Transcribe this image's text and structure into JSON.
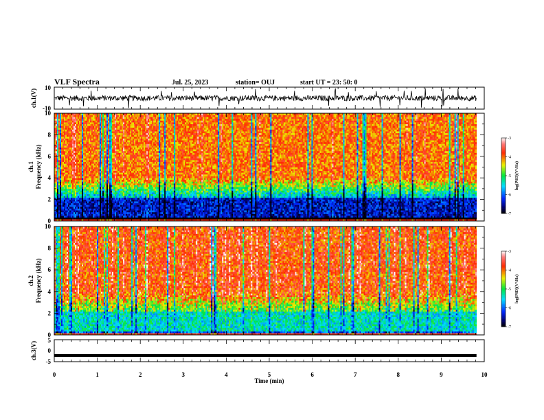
{
  "header": {
    "title": "VLF Spectra",
    "date": "Jul. 25, 2023",
    "station": "station= OUJ",
    "start": "start UT =  23: 50: 0"
  },
  "chart_data": [
    {
      "type": "line",
      "name": "ch1-waveform",
      "ylabel": "ch.1(V)",
      "ylim": [
        -10,
        10
      ],
      "yticks": [
        "10",
        "-10"
      ],
      "xlim": [
        0,
        10
      ],
      "x_extent": [
        0,
        9.82
      ],
      "baseline": 0,
      "typical_amplitude": 2.5,
      "peak_amplitude": 9
    },
    {
      "type": "heatmap",
      "name": "ch1-spectrogram",
      "ylabel": "ch.1 Frequency (kHz)",
      "ylabel_line1": "ch.1",
      "ylabel_line2": "Frequency (kHz)",
      "ylim": [
        0,
        10
      ],
      "yticks": [
        "0",
        "2",
        "4",
        "6",
        "8",
        "10"
      ],
      "xlim": [
        0,
        10
      ],
      "x_extent": [
        0,
        9.82
      ],
      "low_band_khz": [
        0.3,
        2.2
      ],
      "dominant_level": -4.0,
      "low_band_level": -6.4
    },
    {
      "type": "heatmap",
      "name": "ch2-spectrogram",
      "ylabel": "ch.2 Frequency (kHz)",
      "ylabel_line1": "ch.2",
      "ylabel_line2": "Frequency (kHz)",
      "ylim": [
        0,
        10
      ],
      "yticks": [
        "0",
        "2",
        "4",
        "6",
        "8",
        "10"
      ],
      "xlim": [
        0,
        10
      ],
      "x_extent": [
        0,
        9.82
      ],
      "low_band_khz": [
        0.3,
        2.2
      ],
      "dominant_level": -3.9,
      "low_band_level": -5.4
    },
    {
      "type": "line",
      "name": "ch3-waveform",
      "ylabel": "ch.3(V)",
      "ylim": [
        -5,
        5
      ],
      "yticks": [
        "5",
        "0",
        "-5"
      ],
      "xlim": [
        0,
        10
      ],
      "x_extent": [
        0,
        9.82
      ],
      "value": -2.2
    }
  ],
  "colorbar": {
    "label": "log(PSD)(V²/Hz)",
    "min": -7,
    "max": -3,
    "ticks": [
      "-3",
      "-4",
      "-5",
      "-6",
      "-7"
    ]
  },
  "xaxis": {
    "label": "Time (min)",
    "ticks": [
      "0",
      "1",
      "2",
      "3",
      "4",
      "5",
      "6",
      "7",
      "8",
      "9",
      "10"
    ],
    "range": [
      0,
      10
    ]
  }
}
